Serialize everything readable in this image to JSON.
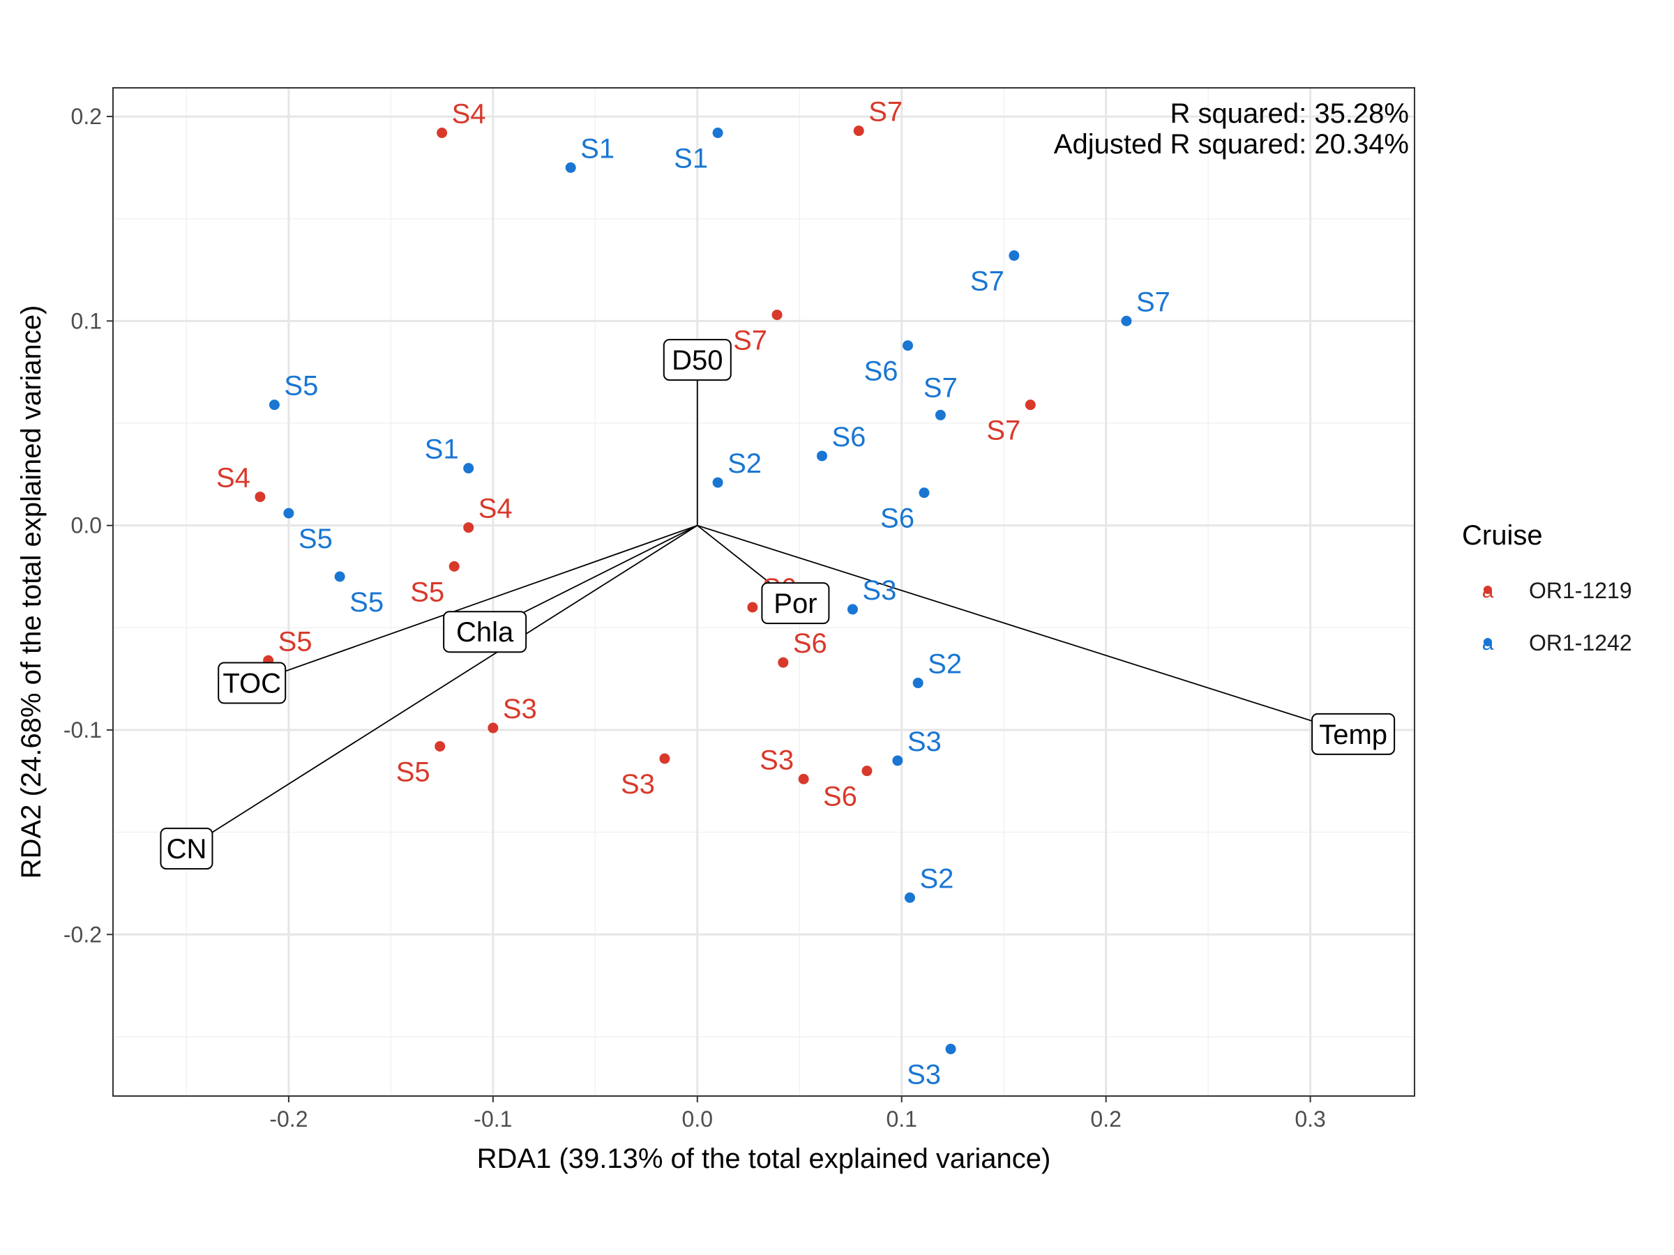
{
  "chart_data": {
    "type": "scatter",
    "title": "",
    "xlabel": "RDA1 (39.13% of the total explained variance)",
    "ylabel": "RDA2 (24.68% of the total explained variance)",
    "xlim": [
      -0.286,
      0.351
    ],
    "ylim": [
      -0.279,
      0.214
    ],
    "x_ticks": [
      -0.2,
      -0.1,
      0.0,
      0.1,
      0.2,
      0.3
    ],
    "x_tick_labels": [
      "-0.2",
      "-0.1",
      "0.0",
      "0.1",
      "0.2",
      "0.3"
    ],
    "y_ticks": [
      -0.2,
      -0.1,
      0.0,
      0.1,
      0.2
    ],
    "y_tick_labels": [
      "-0.2",
      "-0.1",
      "0.0",
      "0.1",
      "0.2"
    ],
    "grid": true,
    "annotations": [
      "R squared: 35.28%",
      "Adjusted R squared: 20.34%"
    ],
    "legend": {
      "title": "Cruise",
      "placement": "right",
      "entries": [
        "OR1-1219",
        "OR1-1242"
      ]
    },
    "series": [
      {
        "name": "OR1-1219",
        "color": "#d8392b",
        "points": [
          {
            "x": -0.125,
            "y": 0.192,
            "label": "S4",
            "pos": "ne"
          },
          {
            "x": 0.079,
            "y": 0.193,
            "label": "S7",
            "pos": "ne"
          },
          {
            "x": 0.039,
            "y": 0.103,
            "label": "S7",
            "pos": "sw"
          },
          {
            "x": 0.163,
            "y": 0.059,
            "label": "S7",
            "pos": "sw"
          },
          {
            "x": -0.214,
            "y": 0.014,
            "label": "S4",
            "pos": "nw"
          },
          {
            "x": -0.112,
            "y": -0.001,
            "label": "S4",
            "pos": "ne"
          },
          {
            "x": -0.119,
            "y": -0.02,
            "label": "S5",
            "pos": "sw"
          },
          {
            "x": 0.027,
            "y": -0.04,
            "label": "S6",
            "pos": "ne"
          },
          {
            "x": 0.042,
            "y": -0.067,
            "label": "S6",
            "pos": "ne"
          },
          {
            "x": -0.21,
            "y": -0.066,
            "label": "S5",
            "pos": "ne"
          },
          {
            "x": -0.1,
            "y": -0.099,
            "label": "S3",
            "pos": "ne"
          },
          {
            "x": -0.126,
            "y": -0.108,
            "label": "S5",
            "pos": "sw"
          },
          {
            "x": -0.016,
            "y": -0.114,
            "label": "S3",
            "pos": "sw"
          },
          {
            "x": 0.052,
            "y": -0.124,
            "label": "S3",
            "pos": "nw"
          },
          {
            "x": 0.083,
            "y": -0.12,
            "label": "S6",
            "pos": "sw"
          }
        ]
      },
      {
        "name": "OR1-1242",
        "color": "#1976d2",
        "points": [
          {
            "x": -0.062,
            "y": 0.175,
            "label": "S1",
            "pos": "ne"
          },
          {
            "x": 0.01,
            "y": 0.192,
            "label": "S1",
            "pos": "sw"
          },
          {
            "x": 0.155,
            "y": 0.132,
            "label": "S7",
            "pos": "sw"
          },
          {
            "x": 0.21,
            "y": 0.1,
            "label": "S7",
            "pos": "ne"
          },
          {
            "x": 0.103,
            "y": 0.088,
            "label": "S6",
            "pos": "sw"
          },
          {
            "x": 0.119,
            "y": 0.054,
            "label": "S7",
            "pos": "n"
          },
          {
            "x": -0.207,
            "y": 0.059,
            "label": "S5",
            "pos": "ne"
          },
          {
            "x": -0.112,
            "y": 0.028,
            "label": "S1",
            "pos": "nw"
          },
          {
            "x": 0.061,
            "y": 0.034,
            "label": "S6",
            "pos": "ne"
          },
          {
            "x": 0.01,
            "y": 0.021,
            "label": "S2",
            "pos": "ne"
          },
          {
            "x": 0.111,
            "y": 0.016,
            "label": "S6",
            "pos": "sw"
          },
          {
            "x": -0.2,
            "y": 0.006,
            "label": "S5",
            "pos": "se"
          },
          {
            "x": -0.175,
            "y": -0.025,
            "label": "S5",
            "pos": "se"
          },
          {
            "x": 0.076,
            "y": -0.041,
            "label": "S3",
            "pos": "ne"
          },
          {
            "x": 0.108,
            "y": -0.077,
            "label": "S2",
            "pos": "ne"
          },
          {
            "x": 0.098,
            "y": -0.115,
            "label": "S3",
            "pos": "ne"
          },
          {
            "x": 0.104,
            "y": -0.182,
            "label": "S2",
            "pos": "ne"
          },
          {
            "x": 0.124,
            "y": -0.256,
            "label": "S3",
            "pos": "sw"
          }
        ]
      }
    ],
    "arrows": [
      {
        "label": "D50",
        "x": 0.0,
        "y": 0.081
      },
      {
        "label": "Chla",
        "x": -0.104,
        "y": -0.052
      },
      {
        "label": "TOC",
        "x": -0.218,
        "y": -0.077
      },
      {
        "label": "CN",
        "x": -0.25,
        "y": -0.158
      },
      {
        "label": "Por",
        "x": 0.048,
        "y": -0.038
      },
      {
        "label": "Temp",
        "x": 0.321,
        "y": -0.102
      }
    ]
  }
}
